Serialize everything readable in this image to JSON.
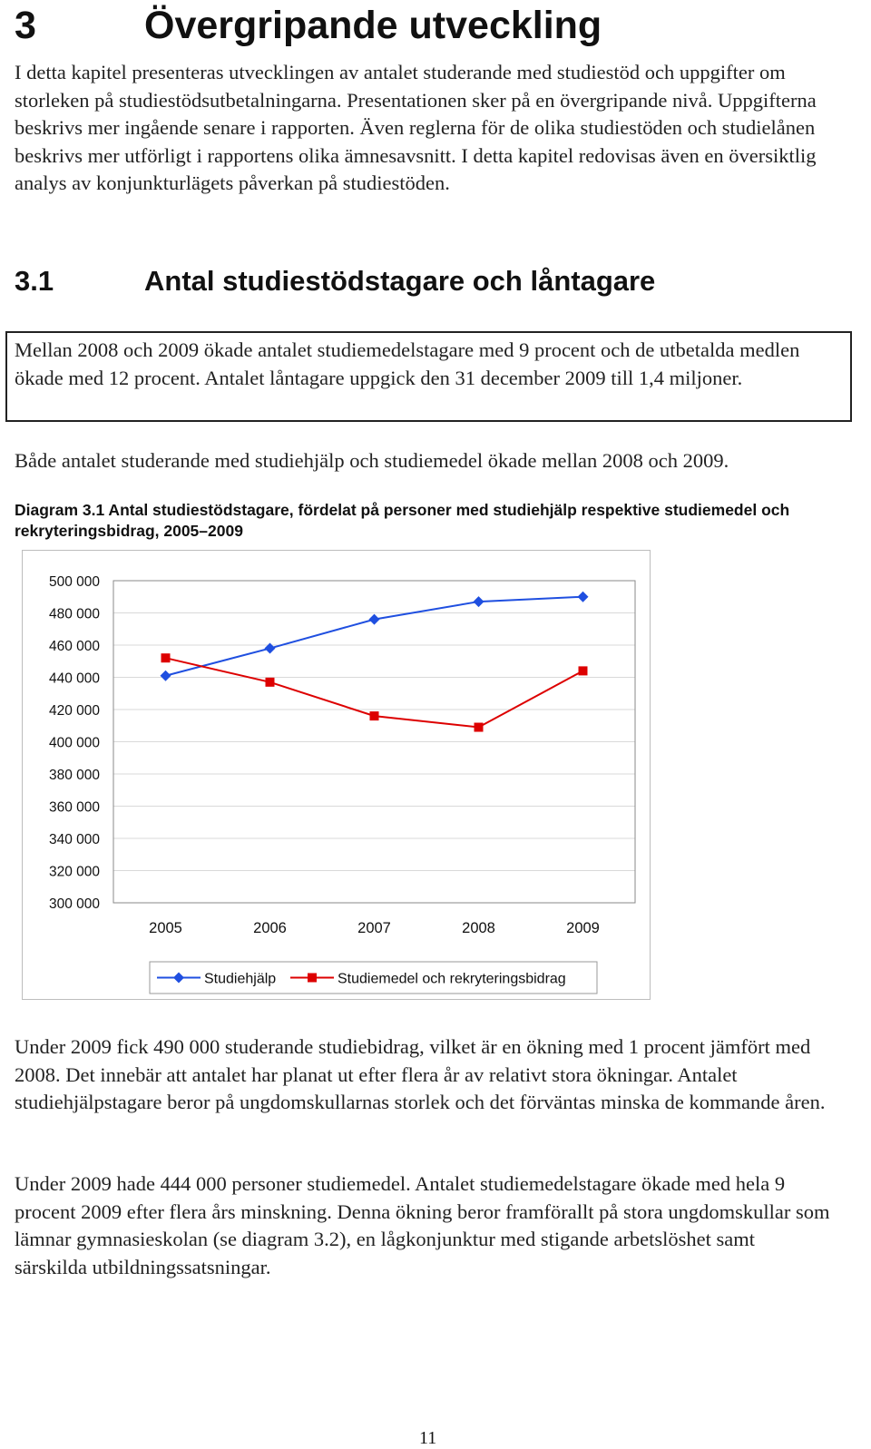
{
  "heading": {
    "number": "3",
    "title": "Övergripande utveckling"
  },
  "intro": "I detta kapitel presenteras utvecklingen av antalet studerande med studiestöd och uppgifter om storleken på studiestödsutbetalningarna. Presentationen sker på en övergripande nivå. Uppgifterna beskrivs mer ingående senare i rapporten. Även reglerna för de olika studiestöden och studielånen beskrivs mer utförligt i rapportens olika ämnesavsnitt. I detta kapitel redovisas även en översiktlig analys av konjunkturlägets påverkan på studiestöden.",
  "section": {
    "number": "3.1",
    "title": "Antal studiestödstagare och låntagare"
  },
  "summary_box": "Mellan 2008 och 2009 ökade antalet studiemedelstagare med 9 procent och de utbetalda medlen ökade med 12 procent. Antalet låntagare uppgick den 31 december 2009 till 1,4 miljoner.",
  "para1": "Både antalet studerande med studiehjälp och studiemedel ökade mellan 2008 och 2009.",
  "caption": {
    "label": "Diagram 3.1",
    "text": " Antal studiestödstagare, fördelat på personer med studiehjälp respektive studiemedel och rekryteringsbidrag, 2005–2009"
  },
  "chart_data": {
    "type": "line",
    "categories": [
      "2005",
      "2006",
      "2007",
      "2008",
      "2009"
    ],
    "ylim": [
      300000,
      500000
    ],
    "yticks": [
      300000,
      320000,
      340000,
      360000,
      380000,
      400000,
      420000,
      440000,
      460000,
      480000,
      500000
    ],
    "ytick_labels": [
      "300 000",
      "320 000",
      "340 000",
      "360 000",
      "380 000",
      "400 000",
      "420 000",
      "440 000",
      "460 000",
      "480 000",
      "500 000"
    ],
    "grid": "horizontal",
    "legend_position": "bottom",
    "series": [
      {
        "name": "Studiehjälp",
        "color": "#1f4fe0",
        "marker": "diamond",
        "values": [
          441000,
          458000,
          476000,
          487000,
          490000
        ]
      },
      {
        "name": "Studiemedel och rekryteringsbidrag",
        "color": "#dd0000",
        "marker": "square",
        "values": [
          452000,
          437000,
          416000,
          409000,
          444000
        ]
      }
    ]
  },
  "para2": "Under 2009 fick 490 000 studerande studiebidrag, vilket är en ökning med 1 procent jämfört med 2008. Det innebär att antalet har planat ut efter flera år av relativt stora ökningar. Antalet studiehjälpstagare beror på ungdomskullarnas storlek och det förväntas minska de kommande åren.",
  "para3": "Under 2009 hade 444 000 personer studiemedel. Antalet studiemedelstagare ökade med hela 9 procent 2009 efter flera års minskning. Denna ökning beror framförallt på stora ungdomskullar som lämnar gymnasieskolan (se diagram 3.2), en lågkonjunktur med stigande arbetslöshet samt särskilda utbildningssatsningar.",
  "page_number": "11"
}
